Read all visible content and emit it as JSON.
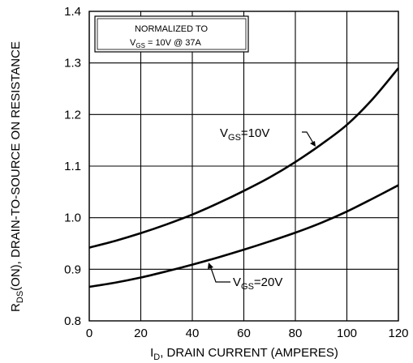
{
  "chart_data": {
    "type": "line",
    "xlabel_main": "I",
    "xlabel_sub": "D",
    "xlabel_rest": ", DRAIN CURRENT (AMPERES)",
    "ylabel_main": "R",
    "ylabel_sub": "DS",
    "ylabel_rest": "(ON), DRAIN-TO-SOURCE ON RESISTANCE",
    "xlim": [
      0,
      120
    ],
    "ylim": [
      0.8,
      1.4
    ],
    "xticks": [
      0,
      20,
      40,
      60,
      80,
      100,
      120
    ],
    "yticks": [
      0.8,
      0.9,
      1.0,
      1.1,
      1.2,
      1.3,
      1.4
    ],
    "grid": true,
    "annotation": {
      "line1": "NORMALIZED  TO",
      "line2_main": "V",
      "line2_sub": "GS",
      "line2_rest": " = 10V  @  37A"
    },
    "series": [
      {
        "name_main": "V",
        "name_sub": "GS",
        "name_rest": "=10V",
        "x": [
          0,
          10,
          20,
          30,
          40,
          50,
          60,
          70,
          80,
          90,
          100,
          110,
          120
        ],
        "y": [
          0.942,
          0.955,
          0.97,
          0.987,
          1.006,
          1.028,
          1.052,
          1.078,
          1.108,
          1.142,
          1.18,
          1.23,
          1.29
        ]
      },
      {
        "name_main": "V",
        "name_sub": "GS",
        "name_rest": "=20V",
        "x": [
          0,
          10,
          20,
          30,
          40,
          50,
          60,
          70,
          80,
          90,
          100,
          110,
          120
        ],
        "y": [
          0.866,
          0.874,
          0.884,
          0.896,
          0.909,
          0.923,
          0.938,
          0.954,
          0.971,
          0.99,
          1.012,
          1.037,
          1.063
        ]
      }
    ]
  }
}
